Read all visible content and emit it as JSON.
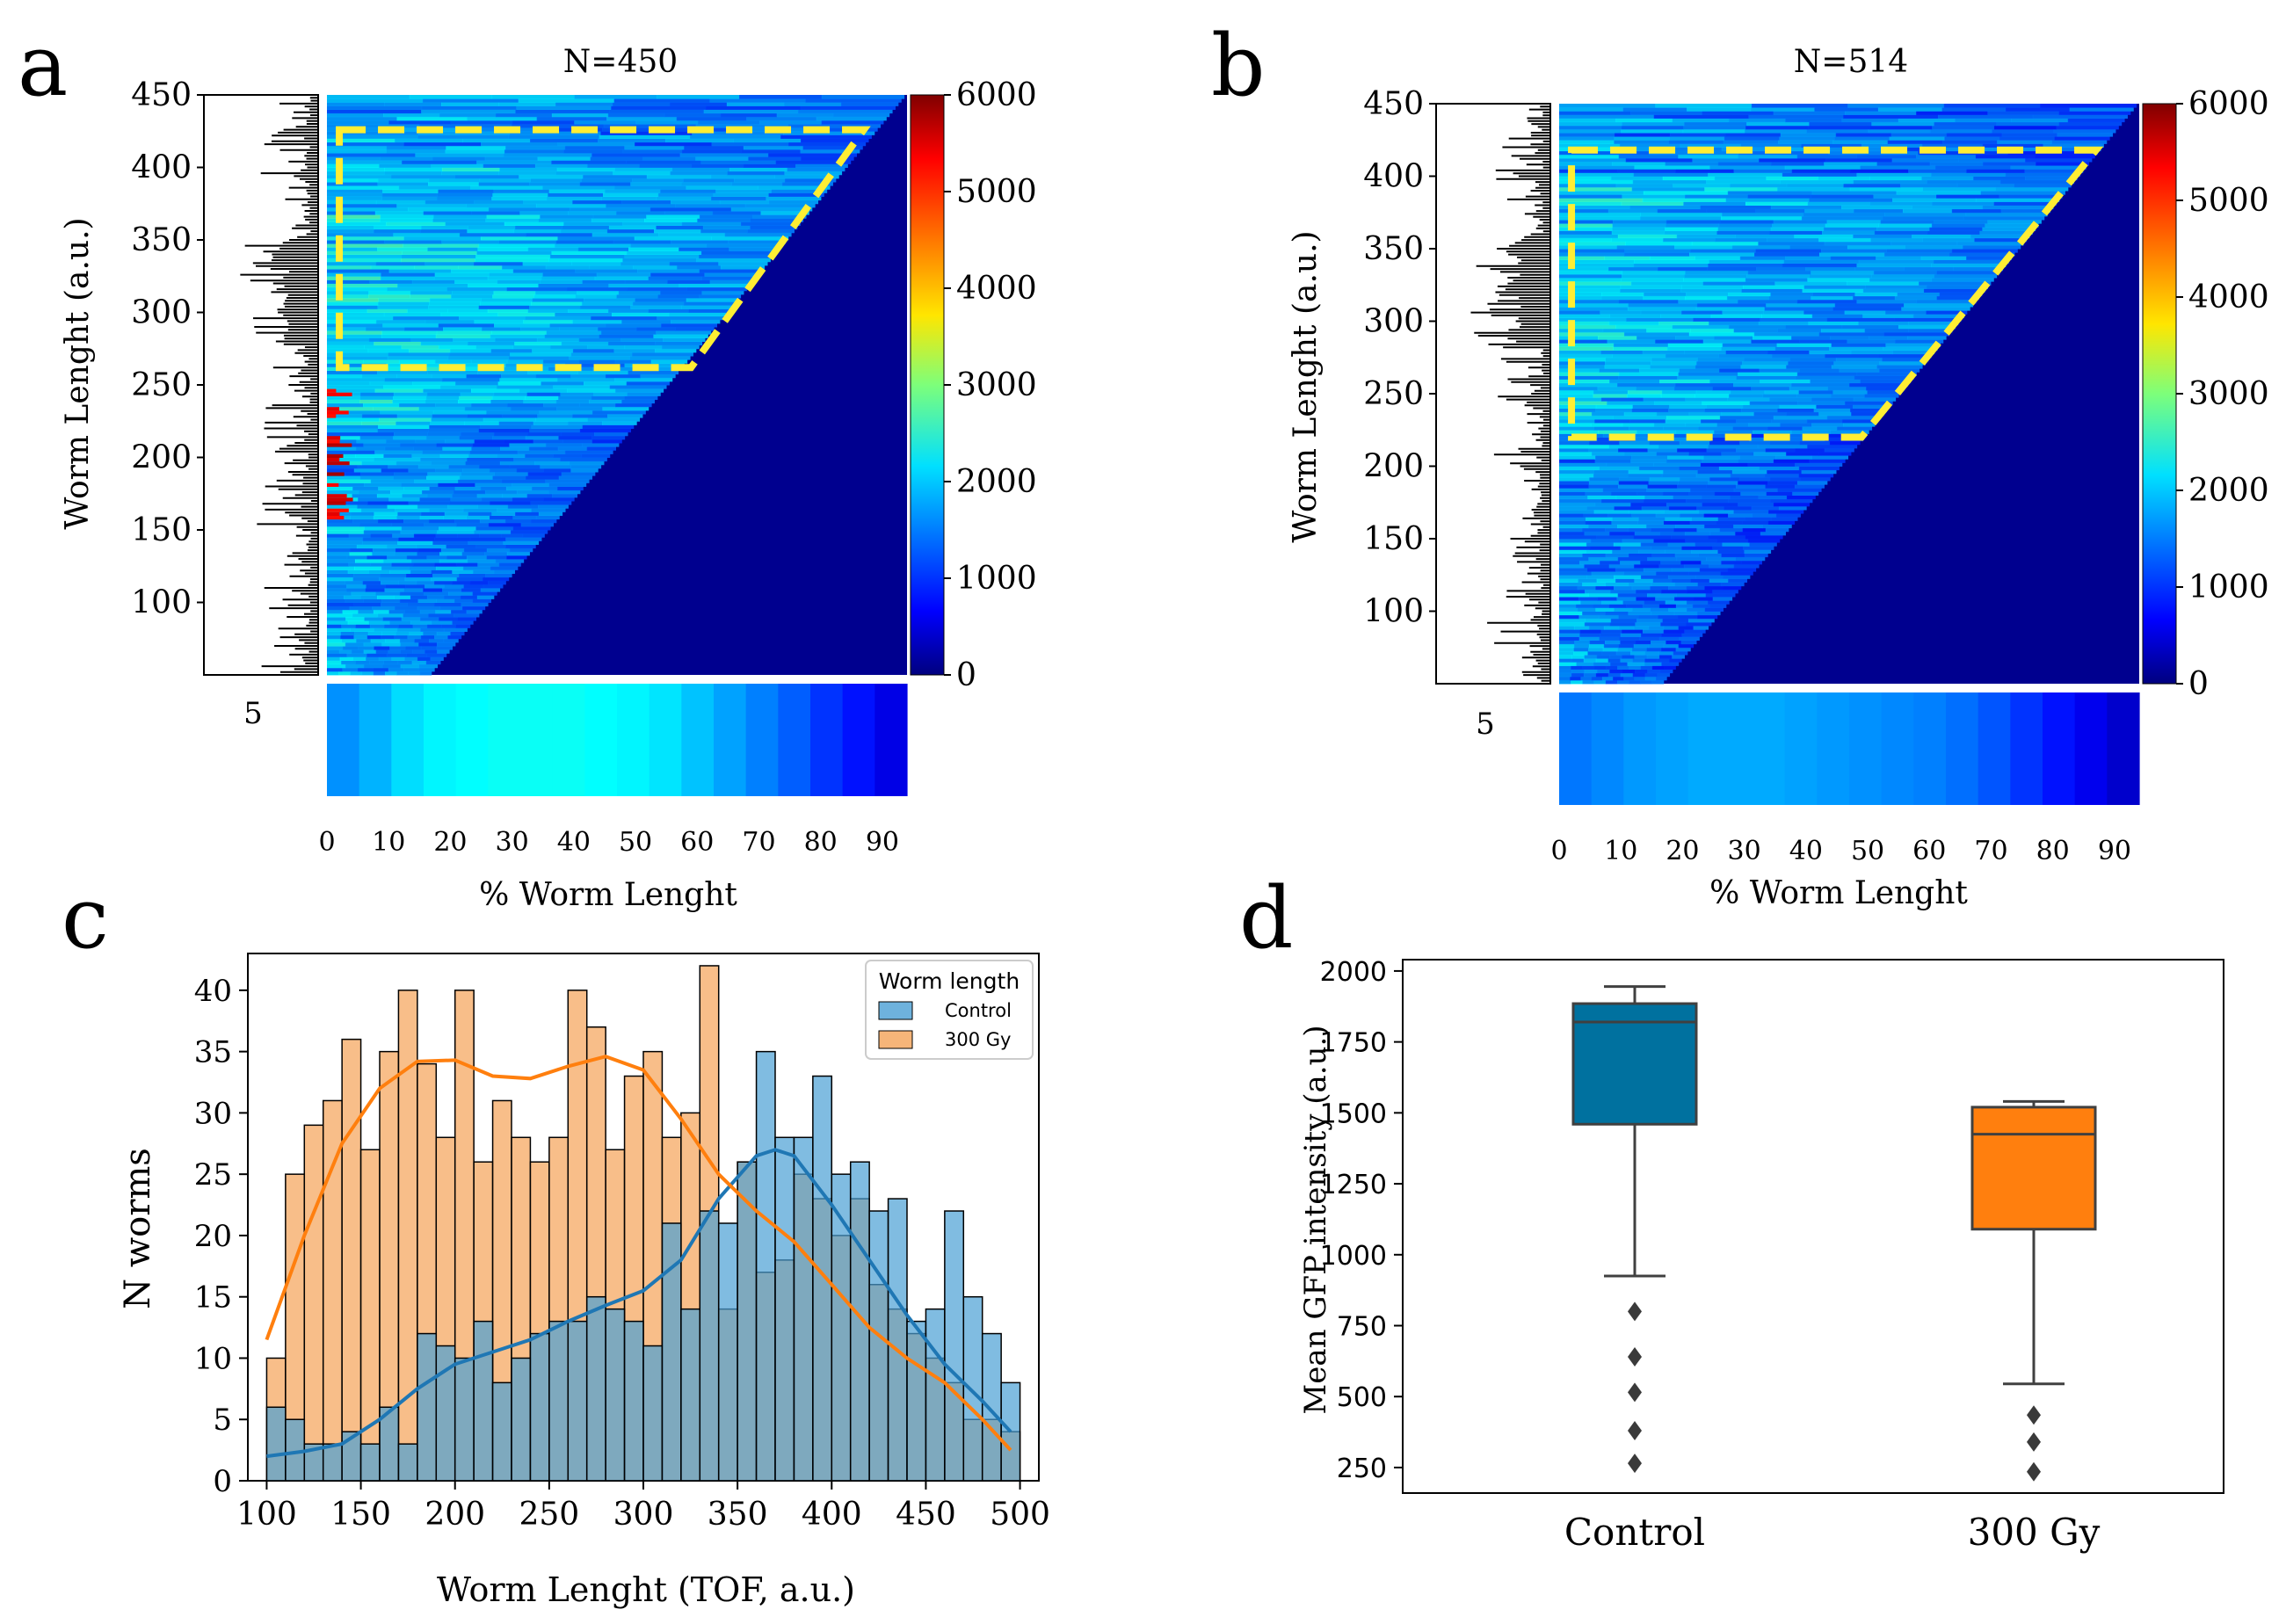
{
  "colors": {
    "heat_bg": "#00008f",
    "orange": "#f5a862",
    "orange_line": "#ff7f0e",
    "blue": "#4a9fd4",
    "blue_line": "#1f77b4",
    "box_control": "#00719f",
    "box_300": "#ff7f0e",
    "yellow": "#ffee33"
  },
  "chart_data": [
    {
      "panel": "a",
      "type": "heatmap",
      "title": "N=450",
      "ylabel": "Worm Lenght (a.u.)",
      "xlabel": "% Worm Lenght",
      "yticks": [
        100,
        150,
        200,
        250,
        300,
        350,
        400,
        450
      ],
      "ylim": [
        50,
        450
      ],
      "xticks": [
        0,
        10,
        20,
        30,
        40,
        50,
        60,
        70,
        80,
        90
      ],
      "xlim": [
        0,
        94
      ],
      "side_histogram_tick": "5",
      "colorbar": {
        "ticks": [
          0,
          1000,
          2000,
          3000,
          4000,
          5000,
          6000
        ],
        "range": [
          0,
          6000
        ]
      },
      "highlight_region": {
        "worm_length_min": 262,
        "worm_length_max": 426,
        "pct_min": 2,
        "pct_max_top": 87,
        "pct_max_bottom": 59
      },
      "mean_profile": [
        1600,
        1800,
        2050,
        2200,
        2250,
        2300,
        2300,
        2300,
        2250,
        2200,
        2100,
        1900,
        1700,
        1500,
        1300,
        1050,
        850,
        600
      ]
    },
    {
      "panel": "b",
      "type": "heatmap",
      "title": "N=514",
      "ylabel": "Worm Lenght (a.u.)",
      "xlabel": "% Worm Lenght",
      "yticks": [
        100,
        150,
        200,
        250,
        300,
        350,
        400,
        450
      ],
      "ylim": [
        50,
        450
      ],
      "xticks": [
        0,
        10,
        20,
        30,
        40,
        50,
        60,
        70,
        80,
        90
      ],
      "xlim": [
        0,
        94
      ],
      "side_histogram_tick": "5",
      "colorbar": {
        "ticks": [
          0,
          1000,
          2000,
          3000,
          4000,
          5000,
          6000
        ],
        "range": [
          0,
          6000
        ]
      },
      "highlight_region": {
        "worm_length_min": 220,
        "worm_length_max": 418,
        "pct_min": 2,
        "pct_max_top": 87,
        "pct_max_bottom": 49
      },
      "mean_profile": [
        1450,
        1550,
        1650,
        1700,
        1750,
        1750,
        1750,
        1700,
        1650,
        1600,
        1550,
        1500,
        1400,
        1250,
        1050,
        850,
        650,
        450
      ]
    },
    {
      "panel": "c",
      "type": "bar",
      "subtype": "histogram_with_kde",
      "xlabel": "Worm Lenght (TOF, a.u.)",
      "ylabel": "N worms",
      "xlim": [
        90,
        510
      ],
      "ylim": [
        0,
        43
      ],
      "xticks": [
        100,
        150,
        200,
        250,
        300,
        350,
        400,
        450,
        500
      ],
      "yticks": [
        0,
        5,
        10,
        15,
        20,
        25,
        30,
        35,
        40
      ],
      "legend_title": "Worm length",
      "bin_start": 100,
      "bin_width": 10,
      "series": [
        {
          "name": "Control",
          "values": [
            6,
            5,
            3,
            3,
            4,
            3,
            6,
            3,
            12,
            11,
            10,
            13,
            8,
            10,
            12,
            13,
            13,
            15,
            14,
            13,
            11,
            21,
            14,
            22,
            21,
            26,
            35,
            28,
            28,
            33,
            25,
            26,
            22,
            23,
            13,
            14,
            22,
            15,
            12,
            8
          ],
          "kde": [
            [
              100,
              2
            ],
            [
              120,
              2.4
            ],
            [
              140,
              3
            ],
            [
              160,
              5
            ],
            [
              180,
              7.5
            ],
            [
              200,
              9.5
            ],
            [
              220,
              10.5
            ],
            [
              240,
              11.5
            ],
            [
              260,
              13
            ],
            [
              280,
              14.3
            ],
            [
              300,
              15.5
            ],
            [
              320,
              18
            ],
            [
              340,
              23
            ],
            [
              360,
              26.5
            ],
            [
              370,
              27
            ],
            [
              380,
              26.5
            ],
            [
              400,
              22.5
            ],
            [
              420,
              18
            ],
            [
              440,
              13.5
            ],
            [
              460,
              9.5
            ],
            [
              480,
              6.5
            ],
            [
              495,
              4
            ]
          ]
        },
        {
          "name": "300 Gy",
          "values": [
            10,
            25,
            29,
            31,
            36,
            27,
            35,
            40,
            34,
            28,
            40,
            26,
            31,
            28,
            26,
            28,
            40,
            37,
            27,
            33,
            35,
            28,
            30,
            42,
            14,
            26,
            17,
            18,
            25,
            23,
            20,
            23,
            16,
            14,
            12,
            10,
            8,
            5,
            5,
            4
          ],
          "kde": [
            [
              100,
              11.5
            ],
            [
              120,
              20
            ],
            [
              140,
              27.5
            ],
            [
              160,
              32
            ],
            [
              180,
              34.2
            ],
            [
              200,
              34.3
            ],
            [
              220,
              33
            ],
            [
              240,
              32.8
            ],
            [
              260,
              33.8
            ],
            [
              280,
              34.6
            ],
            [
              300,
              33.5
            ],
            [
              320,
              29.5
            ],
            [
              340,
              25
            ],
            [
              360,
              22
            ],
            [
              380,
              19.5
            ],
            [
              400,
              16
            ],
            [
              420,
              12.5
            ],
            [
              440,
              10
            ],
            [
              460,
              8
            ],
            [
              480,
              5
            ],
            [
              495,
              2.5
            ]
          ]
        }
      ]
    },
    {
      "panel": "d",
      "type": "box",
      "ylabel": "Mean GFP intensity (a.u.)",
      "categories": [
        "Control",
        "300 Gy"
      ],
      "ylim": [
        160,
        2040
      ],
      "yticks": [
        250,
        500,
        750,
        1000,
        1250,
        1500,
        1750,
        2000
      ],
      "boxes": [
        {
          "name": "Control",
          "whisker_low": 925,
          "q1": 1460,
          "median": 1820,
          "q3": 1885,
          "whisker_high": 1945,
          "outliers": [
            800,
            640,
            515,
            380,
            265
          ]
        },
        {
          "name": "300 Gy",
          "whisker_low": 545,
          "q1": 1090,
          "median": 1425,
          "q3": 1520,
          "whisker_high": 1540,
          "outliers": [
            435,
            340,
            235
          ]
        }
      ]
    }
  ],
  "panel_letters": [
    "a",
    "b",
    "c",
    "d"
  ]
}
